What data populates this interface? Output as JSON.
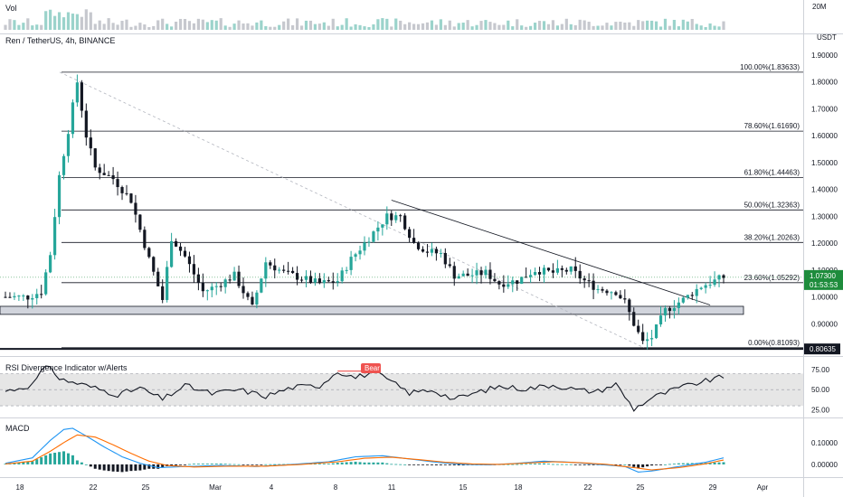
{
  "panes": {
    "volume_title": "Vol",
    "volume_axis_label": "20M",
    "main_title": "Ren / TetherUS, 4h, BINANCE",
    "currency": "USDT",
    "rsi_title": "RSI Divergence Indicator w/Alerts",
    "rsi_bear_label": "Bear",
    "macd_title": "MACD"
  },
  "colors": {
    "up": "#26a69a",
    "down": "#131722",
    "support_zone": "#d1d4dc",
    "rsi_band": "#e6e6e6",
    "macd_line": "#2196f3",
    "signal_line": "#ff6d00",
    "price_tag": "#1e8c3c",
    "bear_tag": "#ef5350"
  },
  "price_axis": {
    "ticks": [
      "1.90000",
      "1.80000",
      "1.70000",
      "1.60000",
      "1.50000",
      "1.40000",
      "1.30000",
      "1.20000",
      "1.10000",
      "1.00000",
      "0.90000"
    ],
    "current_price": "1.07300",
    "countdown": "01:53:53",
    "support_price": "0.80635"
  },
  "rsi_axis": {
    "ticks": [
      "75.00",
      "50.00",
      "25.00"
    ]
  },
  "macd_axis": {
    "ticks": [
      "0.10000",
      "0.00000"
    ]
  },
  "time_axis": {
    "labels": [
      "18",
      "22",
      "25",
      "Mar",
      "4",
      "8",
      "11",
      "15",
      "18",
      "22",
      "25",
      "29",
      "Apr"
    ]
  },
  "chart_data": {
    "type": "candlestick",
    "symbol": "Ren / TetherUS",
    "interval": "4h",
    "exchange": "BINANCE",
    "ylim": [
      0.78,
      1.93
    ],
    "fibonacci": [
      {
        "label": "100.00%(1.83633)",
        "value": 1.83633
      },
      {
        "label": "78.60%(1.61690)",
        "value": 1.6169
      },
      {
        "label": "61.80%(1.44463)",
        "value": 1.44463
      },
      {
        "label": "50.00%(1.32363)",
        "value": 1.32363
      },
      {
        "label": "38.20%(1.20263)",
        "value": 1.20263
      },
      {
        "label": "23.60%(1.05292)",
        "value": 1.05292
      },
      {
        "label": "0.00%(0.81093)",
        "value": 0.81093
      }
    ],
    "price_anchors": [
      [
        0,
        1.0
      ],
      [
        5,
        1.0
      ],
      [
        8,
        1.02
      ],
      [
        10,
        1.16
      ],
      [
        12,
        1.45
      ],
      [
        14,
        1.62
      ],
      [
        16,
        1.8
      ],
      [
        18,
        1.6
      ],
      [
        20,
        1.48
      ],
      [
        24,
        1.44
      ],
      [
        28,
        1.36
      ],
      [
        32,
        1.14
      ],
      [
        35,
        0.99
      ],
      [
        37,
        1.22
      ],
      [
        40,
        1.15
      ],
      [
        44,
        1.02
      ],
      [
        47,
        1.04
      ],
      [
        51,
        1.08
      ],
      [
        55,
        0.96
      ],
      [
        58,
        1.13
      ],
      [
        62,
        1.09
      ],
      [
        66,
        1.07
      ],
      [
        70,
        1.05
      ],
      [
        74,
        1.06
      ],
      [
        77,
        1.14
      ],
      [
        81,
        1.22
      ],
      [
        85,
        1.3
      ],
      [
        88,
        1.3
      ],
      [
        91,
        1.2
      ],
      [
        94,
        1.17
      ],
      [
        97,
        1.16
      ],
      [
        100,
        1.08
      ],
      [
        103,
        1.08
      ],
      [
        107,
        1.09
      ],
      [
        110,
        1.05
      ],
      [
        114,
        1.06
      ],
      [
        118,
        1.1
      ],
      [
        122,
        1.09
      ],
      [
        126,
        1.1
      ],
      [
        129,
        1.06
      ],
      [
        132,
        1.03
      ],
      [
        136,
        1.02
      ],
      [
        138,
        0.98
      ],
      [
        140,
        0.9
      ],
      [
        142,
        0.83
      ],
      [
        144,
        0.85
      ],
      [
        147,
        0.95
      ],
      [
        151,
        0.99
      ],
      [
        155,
        1.04
      ],
      [
        158,
        1.06
      ],
      [
        160,
        1.073
      ]
    ],
    "candle_count": 161,
    "support_zone": [
      0.935,
      0.965
    ],
    "support_level": 0.80635,
    "current_price": 1.073,
    "descending_trendline": [
      [
        86,
        1.36
      ],
      [
        157,
        0.97
      ]
    ],
    "rsi": {
      "ylim": [
        20,
        85
      ],
      "band": [
        30,
        70
      ],
      "anchors": [
        [
          0,
          48
        ],
        [
          6,
          56
        ],
        [
          8,
          72
        ],
        [
          10,
          80
        ],
        [
          12,
          63
        ],
        [
          16,
          58
        ],
        [
          20,
          52
        ],
        [
          25,
          44
        ],
        [
          30,
          52
        ],
        [
          35,
          38
        ],
        [
          40,
          55
        ],
        [
          46,
          45
        ],
        [
          52,
          50
        ],
        [
          58,
          42
        ],
        [
          64,
          53
        ],
        [
          70,
          55
        ],
        [
          74,
          73
        ],
        [
          78,
          65
        ],
        [
          82,
          72
        ],
        [
          85,
          63
        ],
        [
          90,
          46
        ],
        [
          95,
          50
        ],
        [
          100,
          38
        ],
        [
          106,
          48
        ],
        [
          110,
          54
        ],
        [
          116,
          51
        ],
        [
          122,
          56
        ],
        [
          128,
          49
        ],
        [
          132,
          48
        ],
        [
          136,
          57
        ],
        [
          140,
          26
        ],
        [
          144,
          40
        ],
        [
          150,
          52
        ],
        [
          154,
          58
        ],
        [
          160,
          66
        ]
      ]
    },
    "macd": {
      "ylim": [
        -0.05,
        0.19
      ],
      "macd_anchors": [
        [
          0,
          0.005
        ],
        [
          6,
          0.03
        ],
        [
          10,
          0.11
        ],
        [
          13,
          0.16
        ],
        [
          15,
          0.165
        ],
        [
          18,
          0.13
        ],
        [
          22,
          0.08
        ],
        [
          26,
          0.035
        ],
        [
          30,
          0.005
        ],
        [
          34,
          -0.015
        ],
        [
          40,
          -0.01
        ],
        [
          48,
          -0.005
        ],
        [
          56,
          -0.01
        ],
        [
          64,
          0.0
        ],
        [
          72,
          0.012
        ],
        [
          78,
          0.035
        ],
        [
          84,
          0.04
        ],
        [
          90,
          0.025
        ],
        [
          96,
          0.01
        ],
        [
          102,
          0.0
        ],
        [
          108,
          -0.002
        ],
        [
          114,
          0.005
        ],
        [
          120,
          0.015
        ],
        [
          126,
          0.01
        ],
        [
          132,
          0.0
        ],
        [
          138,
          -0.01
        ],
        [
          141,
          -0.035
        ],
        [
          144,
          -0.03
        ],
        [
          150,
          -0.01
        ],
        [
          156,
          0.01
        ],
        [
          160,
          0.03
        ]
      ],
      "signal_anchors": [
        [
          0,
          0.002
        ],
        [
          6,
          0.015
        ],
        [
          10,
          0.06
        ],
        [
          13,
          0.1
        ],
        [
          16,
          0.135
        ],
        [
          20,
          0.125
        ],
        [
          24,
          0.09
        ],
        [
          28,
          0.05
        ],
        [
          32,
          0.015
        ],
        [
          36,
          -0.005
        ],
        [
          42,
          -0.012
        ],
        [
          50,
          -0.008
        ],
        [
          58,
          -0.008
        ],
        [
          66,
          0.0
        ],
        [
          74,
          0.012
        ],
        [
          80,
          0.028
        ],
        [
          86,
          0.033
        ],
        [
          92,
          0.022
        ],
        [
          98,
          0.01
        ],
        [
          104,
          0.002
        ],
        [
          110,
          0.0
        ],
        [
          116,
          0.006
        ],
        [
          122,
          0.012
        ],
        [
          128,
          0.008
        ],
        [
          134,
          0.0
        ],
        [
          140,
          -0.015
        ],
        [
          144,
          -0.025
        ],
        [
          150,
          -0.015
        ],
        [
          156,
          0.003
        ],
        [
          160,
          0.02
        ]
      ]
    }
  }
}
